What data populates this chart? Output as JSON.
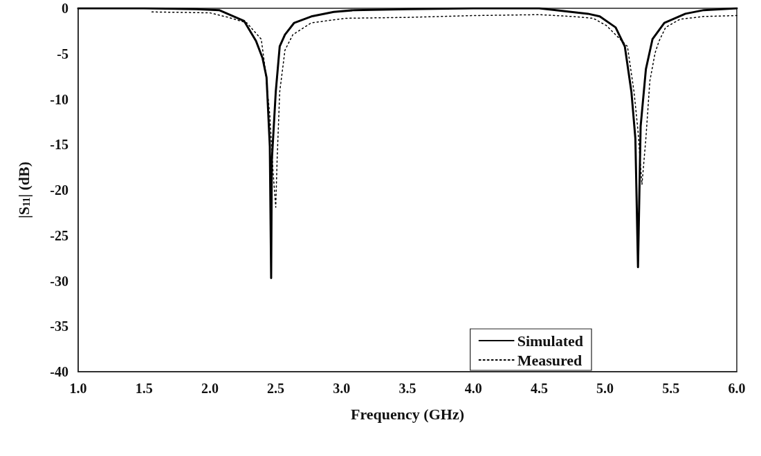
{
  "chart_data": {
    "type": "line",
    "xlabel": "Frequency (GHz)",
    "ylabel": "|S$_{11}$| (dB)",
    "xlim": [
      1,
      6
    ],
    "ylim": [
      -40,
      0
    ],
    "xticks": [
      {
        "value": 1,
        "label": "1.0"
      },
      {
        "value": 1.5,
        "label": "1.5"
      },
      {
        "value": 2,
        "label": "2.0"
      },
      {
        "value": 2.5,
        "label": "2.5"
      },
      {
        "value": 3,
        "label": "3.0"
      },
      {
        "value": 3.5,
        "label": "3.5"
      },
      {
        "value": 4,
        "label": "4.0"
      },
      {
        "value": 4.5,
        "label": "4.5"
      },
      {
        "value": 5,
        "label": "5.0"
      },
      {
        "value": 5.5,
        "label": "5.5"
      },
      {
        "value": 6,
        "label": "6.0"
      }
    ],
    "yticks": [
      0,
      -5,
      -10,
      -15,
      -20,
      -25,
      -30,
      -35,
      -40
    ],
    "grid": false,
    "legend": "bottom right",
    "marker": "none",
    "series": [
      {
        "name": "Simulated",
        "color": "#000000",
        "line_style": "solid",
        "x": [
          1,
          1.5,
          1.9,
          2.07,
          2.26,
          2.35,
          2.4,
          2.43,
          2.455,
          2.465,
          2.47,
          2.5,
          2.53,
          2.57,
          2.64,
          2.77,
          2.94,
          3.1,
          3.5,
          4,
          4.5,
          4.87,
          4.96,
          5.08,
          5.15,
          5.2,
          5.23,
          5.25,
          5.27,
          5.31,
          5.36,
          5.45,
          5.61,
          5.75,
          6
        ],
        "values": [
          0,
          0,
          -0.1,
          -0.2,
          -1.4,
          -3.6,
          -5.5,
          -7.6,
          -15.2,
          -29.7,
          -16.8,
          -9.2,
          -4.2,
          -2.9,
          -1.6,
          -0.9,
          -0.4,
          -0.2,
          -0.1,
          0,
          0,
          -0.6,
          -0.9,
          -2.1,
          -4.2,
          -9.2,
          -14.3,
          -28.5,
          -13,
          -6.7,
          -3.4,
          -1.6,
          -0.6,
          -0.2,
          0
        ]
      },
      {
        "name": "Measured",
        "color": "#000000",
        "line_style": "dotted",
        "x": [
          1.56,
          2,
          2.14,
          2.28,
          2.39,
          2.42,
          2.455,
          2.48,
          2.5,
          2.51,
          2.53,
          2.57,
          2.63,
          2.77,
          3.03,
          3.5,
          4,
          4.5,
          4.75,
          4.91,
          5.01,
          5.17,
          5.22,
          5.25,
          5.28,
          5.31,
          5.34,
          5.38,
          5.41,
          5.46,
          5.57,
          5.75,
          6
        ],
        "values": [
          -0.4,
          -0.5,
          -1,
          -1.6,
          -3.4,
          -6.7,
          -11.8,
          -18.1,
          -21.9,
          -16.8,
          -9.2,
          -4.6,
          -2.9,
          -1.6,
          -1.1,
          -1,
          -0.8,
          -0.7,
          -0.9,
          -1.1,
          -1.9,
          -4.2,
          -9.2,
          -13.5,
          -19.4,
          -14.3,
          -8,
          -4.9,
          -3.6,
          -2.1,
          -1.2,
          -0.9,
          -0.8
        ]
      }
    ]
  }
}
